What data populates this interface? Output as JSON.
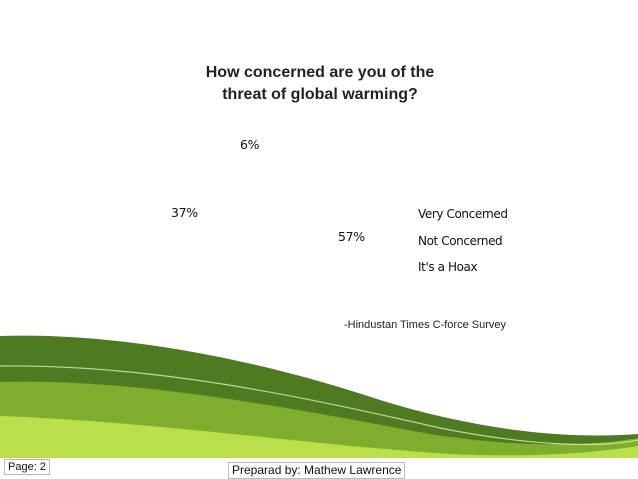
{
  "chart_data": {
    "type": "pie",
    "title": "How concerned are you of the threat of global warming?",
    "title_lines": [
      "How concerned are you of the",
      "threat of global warming?"
    ],
    "categories": [
      "Very Concerned",
      "Not Concerned",
      "It's a Hoax"
    ],
    "values": [
      57,
      37,
      6
    ],
    "value_labels": [
      "57%",
      "37%",
      "6%"
    ],
    "legend_position": "right"
  },
  "source": "-Hindustan Times C-force Survey",
  "footer": {
    "page": "Page: 2",
    "prepared_by": "Preparad by: Mathew Lawrence"
  },
  "colors": {
    "wave_dark": "#4e7a22",
    "wave_mid": "#7fae2e",
    "wave_light": "#b9e04a"
  }
}
